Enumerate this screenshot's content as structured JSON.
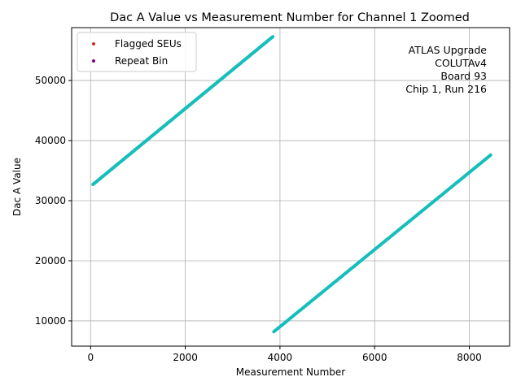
{
  "chart_data": {
    "type": "scatter",
    "title": "Dac A Value vs Measurement Number for Channel 1 Zoomed",
    "xlabel": "Measurement Number",
    "ylabel": "Dac A Value",
    "xlim": [
      -400,
      8850
    ],
    "ylim": [
      5800,
      58800
    ],
    "xticks": [
      0,
      2000,
      4000,
      6000,
      8000
    ],
    "yticks": [
      10000,
      20000,
      30000,
      40000,
      50000
    ],
    "grid": true,
    "legend_position": "top-left",
    "legend": [
      {
        "label": "Flagged SEUs",
        "color": "#d62728"
      },
      {
        "label": "Repeat Bin",
        "color": "#800080"
      }
    ],
    "annotation_lines": [
      "ATLAS Upgrade",
      "COLUTAv4",
      "Board 93",
      "Chip 1, Run 216"
    ],
    "series": [
      {
        "color": "#17bebb",
        "segments": [
          {
            "x_start": 50,
            "x_end": 3850,
            "y_start": 32700,
            "y_end": 57300,
            "points": 240
          },
          {
            "x_start": 3870,
            "x_end": 8450,
            "y_start": 8200,
            "y_end": 37600,
            "points": 220
          }
        ]
      }
    ],
    "flagged_seus": [],
    "repeat_bin": []
  }
}
